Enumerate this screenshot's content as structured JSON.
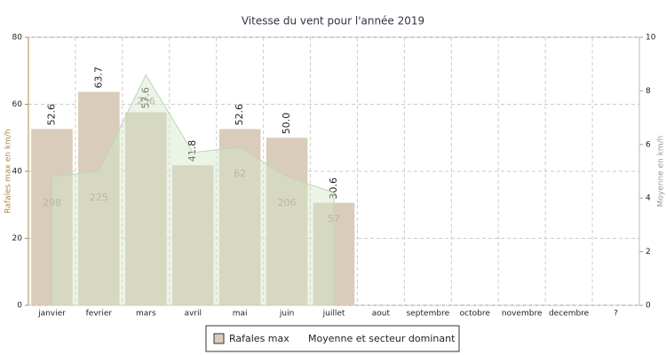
{
  "chart_data": {
    "type": "bar",
    "title": "Vitesse du vent pour l'année 2019",
    "categories": [
      "janvier",
      "fevrier",
      "mars",
      "avril",
      "mai",
      "juin",
      "juillet",
      "aout",
      "septembre",
      "octobre",
      "novembre",
      "decembre",
      "?"
    ],
    "y_label": "Rafales max en km/h",
    "y2_label": "Moyenne en km/h",
    "ylim": [
      0,
      80
    ],
    "yticks": [
      0,
      20,
      40,
      60,
      80
    ],
    "y2lim": [
      0,
      10
    ],
    "y2ticks": [
      0,
      2,
      4,
      6,
      8,
      10
    ],
    "grid": true,
    "series": [
      {
        "name": "Rafales max",
        "color": "#d9ccba",
        "values": [
          52.6,
          63.7,
          57.6,
          41.8,
          52.6,
          50.0,
          30.6,
          null,
          null,
          null,
          null,
          null,
          null
        ],
        "value_labels": [
          "52.6",
          "63.7",
          "57.6",
          "41.8",
          "52.6",
          "50.0",
          "30.6",
          null,
          null,
          null,
          null,
          null,
          null
        ]
      },
      {
        "name": "Moyenne et secteur dominant",
        "color": "#d4e6cc",
        "axis": "y2",
        "values": [
          4.8,
          5.0,
          8.6,
          5.7,
          5.9,
          4.8,
          4.2,
          null,
          null,
          null,
          null,
          null,
          null
        ],
        "sectors": [
          298,
          225,
          256,
          null,
          62,
          206,
          57,
          null,
          null,
          null,
          null,
          null,
          null
        ]
      }
    ]
  }
}
